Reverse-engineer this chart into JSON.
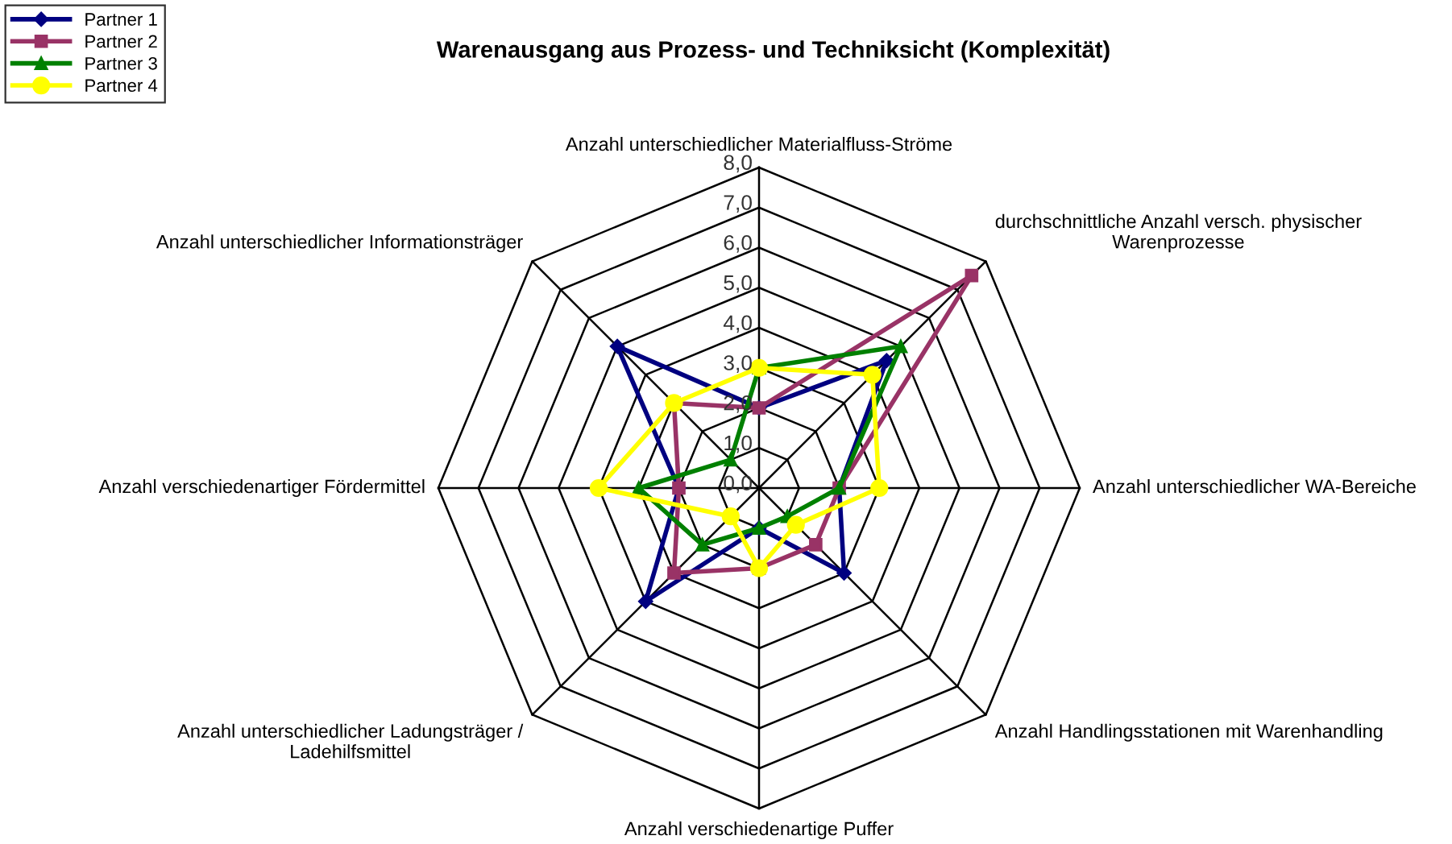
{
  "chart_data": {
    "type": "radar",
    "title": "Warenausgang aus Prozess- und Techniksicht (Komplexität)",
    "categories": [
      "Anzahl unterschiedlicher Materialfluss-Ströme",
      "durchschnittliche Anzahl versch. physischer\nWarenprozesse",
      "Anzahl unterschiedlicher WA-Bereiche",
      "Anzahl Handlingsstationen mit Warenhandling",
      "Anzahl verschiedenartige Puffer",
      "Anzahl unterschiedlicher Ladungsträger /\nLadehilfsmittel",
      "Anzahl verschiedenartiger Fördermittel",
      "Anzahl unterschiedlicher Informationsträger"
    ],
    "series": [
      {
        "name": "Partner 1",
        "color": "#000080",
        "marker": "diamond",
        "values": [
          2,
          4.5,
          2,
          3,
          1,
          4,
          2,
          5
        ]
      },
      {
        "name": "Partner 2",
        "color": "#993366",
        "marker": "square",
        "values": [
          2,
          7.5,
          2,
          2,
          2,
          3,
          2,
          3
        ]
      },
      {
        "name": "Partner 3",
        "color": "#008000",
        "marker": "triangle",
        "values": [
          3,
          5,
          2,
          1,
          1,
          2,
          3,
          1
        ]
      },
      {
        "name": "Partner 4",
        "color": "#ffff00",
        "marker": "circle",
        "values": [
          3,
          4,
          3,
          1.3,
          2,
          1,
          4,
          3
        ]
      }
    ],
    "ylim": [
      0,
      8
    ],
    "yticks": [
      {
        "value": 0,
        "label": "0,0"
      },
      {
        "value": 1,
        "label": "1,0"
      },
      {
        "value": 2,
        "label": "2,0"
      },
      {
        "value": 3,
        "label": "3,0"
      },
      {
        "value": 4,
        "label": "4,0"
      },
      {
        "value": 5,
        "label": "5,0"
      },
      {
        "value": 6,
        "label": "6,0"
      },
      {
        "value": 7,
        "label": "7,0"
      },
      {
        "value": 8,
        "label": "8,0"
      }
    ],
    "grid": true,
    "legend": "top left",
    "line_style": "solid"
  }
}
